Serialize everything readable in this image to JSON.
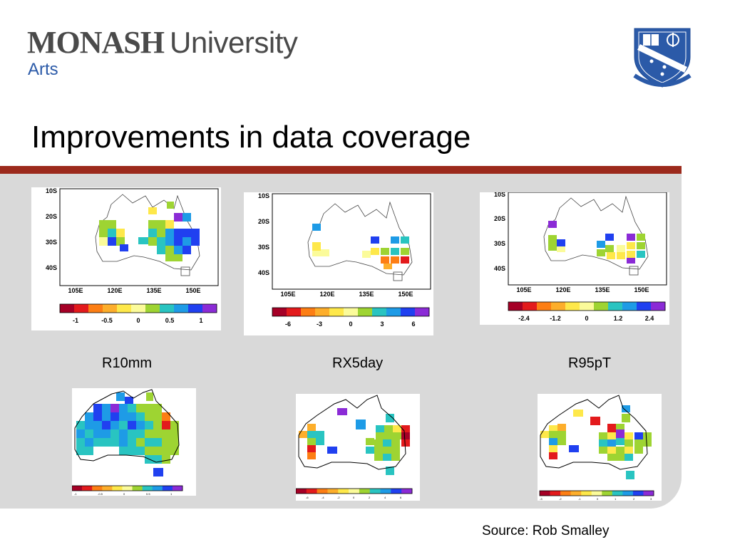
{
  "header": {
    "logo_monash": "MONASH",
    "logo_university": "University",
    "logo_arts": "Arts"
  },
  "slide": {
    "title": "Improvements in data coverage",
    "source": "Source: Rob Smalley"
  },
  "colors": {
    "bar": "#9c2a1c",
    "panel": "#d9d9d9",
    "brand_blue": "#2b5aa8",
    "palette": [
      "#a50026",
      "#e31a1c",
      "#fd7e14",
      "#fdae2b",
      "#fee84a",
      "#fbfb9a",
      "#9ed432",
      "#29c4c1",
      "#1e9be6",
      "#2040f0",
      "#8b2bd6"
    ]
  },
  "maps": [
    {
      "caption": "R10mm",
      "lat_ticks": [
        "10S",
        "20S",
        "30S",
        "40S"
      ],
      "lon_ticks": [
        "105E",
        "120E",
        "135E",
        "150E"
      ],
      "colorbar_ticks": [
        "-1",
        "-0.5",
        "0",
        "0.5",
        "1"
      ],
      "bottom_colorbar_ticks": [
        "-1",
        "-0.5",
        "0",
        "0.5",
        "1"
      ]
    },
    {
      "caption": "RX5day",
      "lat_ticks": [
        "10S",
        "20S",
        "30S",
        "40S"
      ],
      "lon_ticks": [
        "105E",
        "120E",
        "135E",
        "150E"
      ],
      "colorbar_ticks": [
        "-6",
        "-3",
        "0",
        "3",
        "6"
      ],
      "bottom_colorbar_ticks": [
        "-6",
        "-4",
        "-2",
        "0",
        "2",
        "4",
        "6"
      ]
    },
    {
      "caption": "R95pT",
      "lat_ticks": [
        "10S",
        "20S",
        "30S",
        "40S"
      ],
      "lon_ticks": [
        "105E",
        "120E",
        "135E",
        "150E"
      ],
      "colorbar_ticks": [
        "-2.4",
        "-1.2",
        "0",
        "1.2",
        "2.4"
      ],
      "bottom_colorbar_ticks": [
        "-3",
        "-2",
        "-1",
        "0",
        "1",
        "2",
        "3"
      ]
    }
  ]
}
